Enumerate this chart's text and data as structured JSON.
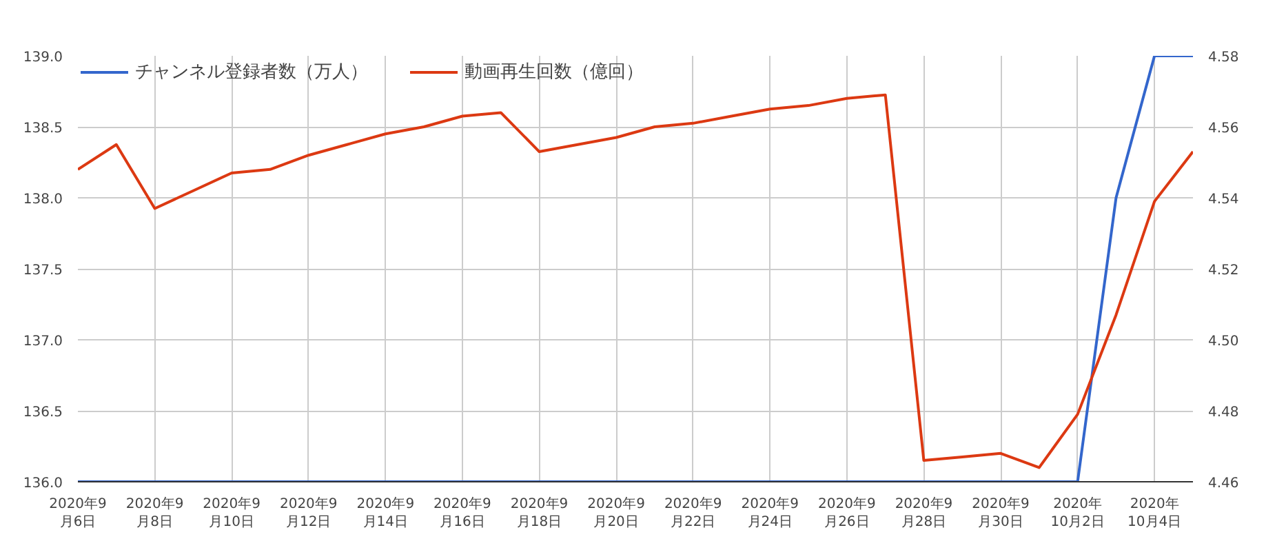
{
  "chart_data": {
    "type": "line",
    "x": [
      "2020-09-06",
      "2020-09-07",
      "2020-09-08",
      "2020-09-09",
      "2020-09-10",
      "2020-09-11",
      "2020-09-12",
      "2020-09-13",
      "2020-09-14",
      "2020-09-15",
      "2020-09-16",
      "2020-09-17",
      "2020-09-18",
      "2020-09-19",
      "2020-09-20",
      "2020-09-21",
      "2020-09-22",
      "2020-09-23",
      "2020-09-24",
      "2020-09-25",
      "2020-09-26",
      "2020-09-27",
      "2020-09-28",
      "2020-09-29",
      "2020-09-30",
      "2020-10-01",
      "2020-10-02",
      "2020-10-03",
      "2020-10-04",
      "2020-10-05"
    ],
    "series": [
      {
        "name": "チャンネル登録者数（万人）",
        "color": "#3366cc",
        "values": [
          136,
          136,
          136,
          136,
          136,
          136,
          136,
          136,
          136,
          136,
          136,
          136,
          136,
          136,
          136,
          136,
          136,
          136,
          136,
          136,
          136,
          136,
          136,
          136,
          136,
          136,
          136,
          138.0,
          139.0,
          139.0
        ]
      },
      {
        "name": "動画再生回数（億回）",
        "color": "#dc3912",
        "axis": "y2",
        "values": [
          4.548,
          4.555,
          4.537,
          4.542,
          4.547,
          4.548,
          4.552,
          4.555,
          4.558,
          4.56,
          4.563,
          4.564,
          4.553,
          4.555,
          4.557,
          4.56,
          4.561,
          4.563,
          4.565,
          4.566,
          4.568,
          4.569,
          4.466,
          4.467,
          4.468,
          4.464,
          4.479,
          4.507,
          4.539,
          4.553
        ]
      }
    ],
    "xlim": [
      "2020-09-06",
      "2020-10-05"
    ],
    "xticks": [
      {
        "value": "2020-09-06",
        "label": "2020年9\n月6日"
      },
      {
        "value": "2020-09-08",
        "label": "2020年9\n月8日"
      },
      {
        "value": "2020-09-10",
        "label": "2020年9\n月10日"
      },
      {
        "value": "2020-09-12",
        "label": "2020年9\n月12日"
      },
      {
        "value": "2020-09-14",
        "label": "2020年9\n月14日"
      },
      {
        "value": "2020-09-16",
        "label": "2020年9\n月16日"
      },
      {
        "value": "2020-09-18",
        "label": "2020年9\n月18日"
      },
      {
        "value": "2020-09-20",
        "label": "2020年9\n月20日"
      },
      {
        "value": "2020-09-22",
        "label": "2020年9\n月22日"
      },
      {
        "value": "2020-09-24",
        "label": "2020年9\n月24日"
      },
      {
        "value": "2020-09-26",
        "label": "2020年9\n月26日"
      },
      {
        "value": "2020-09-28",
        "label": "2020年9\n月28日"
      },
      {
        "value": "2020-09-30",
        "label": "2020年9\n月30日"
      },
      {
        "value": "2020-10-02",
        "label": "2020年\n10月2日"
      },
      {
        "value": "2020-10-04",
        "label": "2020年\n10月4日"
      }
    ],
    "ylim": [
      136,
      139
    ],
    "yticks": [
      {
        "value": 136,
        "label": "136.0"
      },
      {
        "value": 136.5,
        "label": "136.5"
      },
      {
        "value": 137,
        "label": "137.0"
      },
      {
        "value": 137.5,
        "label": "137.5"
      },
      {
        "value": 138,
        "label": "138.0"
      },
      {
        "value": 138.5,
        "label": "138.5"
      },
      {
        "value": 139,
        "label": "139.0"
      }
    ],
    "y2lim": [
      4.46,
      4.58
    ],
    "y2ticks": [
      {
        "value": 4.46,
        "label": "4.46"
      },
      {
        "value": 4.48,
        "label": "4.48"
      },
      {
        "value": 4.5,
        "label": "4.50"
      },
      {
        "value": 4.52,
        "label": "4.52"
      },
      {
        "value": 4.54,
        "label": "4.54"
      },
      {
        "value": 4.56,
        "label": "4.56"
      },
      {
        "value": 4.58,
        "label": "4.58"
      }
    ],
    "grid": true,
    "legend": "top left",
    "line_style": "solid"
  }
}
